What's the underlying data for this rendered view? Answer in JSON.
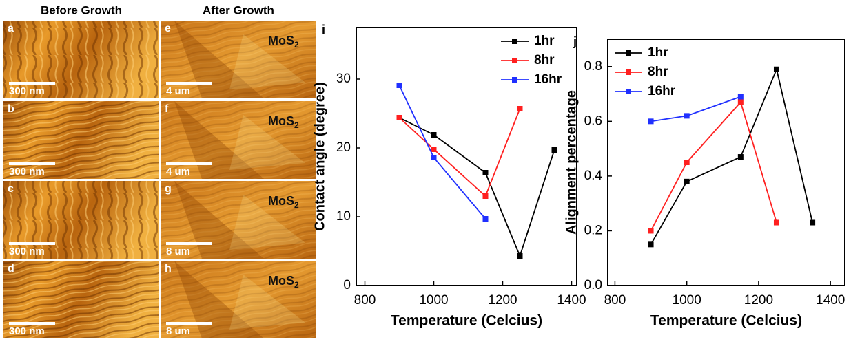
{
  "image_panels": {
    "column_titles": [
      "Before Growth",
      "After Growth"
    ],
    "panels": [
      {
        "letter": "a",
        "scale": "300 nm"
      },
      {
        "letter": "e",
        "scale": "4 um",
        "label": "MoS",
        "label_sub": "2"
      },
      {
        "letter": "b",
        "scale": "300 nm"
      },
      {
        "letter": "f",
        "scale": "4 um",
        "label": "MoS",
        "label_sub": "2"
      },
      {
        "letter": "c",
        "scale": "300 nm"
      },
      {
        "letter": "g",
        "scale": "8 um",
        "label": "MoS",
        "label_sub": "2"
      },
      {
        "letter": "d",
        "scale": "300 nm"
      },
      {
        "letter": "h",
        "scale": "8 um",
        "label": "MoS",
        "label_sub": "2"
      }
    ]
  },
  "chart_data": [
    {
      "type": "line",
      "panel_label": "i",
      "xlabel": "Temperature (Celcius)",
      "ylabel": "Contact angle (degree)",
      "x": [
        900,
        1000,
        1150,
        1250,
        1350
      ],
      "series": [
        {
          "name": "1hr",
          "color": "#000000",
          "values": [
            24.4,
            21.9,
            16.4,
            4.3,
            19.7
          ]
        },
        {
          "name": "8hr",
          "color": "#ff2020",
          "values": [
            24.4,
            19.8,
            13.0,
            25.7,
            null
          ]
        },
        {
          "name": "16hr",
          "color": "#2030ff",
          "values": [
            29.1,
            18.6,
            9.7,
            null,
            null
          ]
        }
      ],
      "xlim": [
        775,
        1415
      ],
      "xticks": [
        800,
        1000,
        1200,
        1400
      ],
      "ylim": [
        0,
        37.5
      ],
      "yticks": [
        0,
        10,
        20,
        30
      ],
      "legend": "upper right"
    },
    {
      "type": "line",
      "panel_label": "j",
      "xlabel": "Temperature (Celcius)",
      "ylabel": "Alignment percentage",
      "x": [
        900,
        1000,
        1150,
        1250,
        1350
      ],
      "series": [
        {
          "name": "1hr",
          "color": "#000000",
          "values": [
            0.15,
            0.38,
            0.47,
            0.79,
            0.23
          ]
        },
        {
          "name": "8hr",
          "color": "#ff2020",
          "values": [
            0.2,
            0.45,
            0.67,
            0.23,
            null
          ]
        },
        {
          "name": "16hr",
          "color": "#2030ff",
          "values": [
            0.6,
            0.62,
            0.69,
            null,
            null
          ]
        }
      ],
      "xlim": [
        780,
        1440
      ],
      "xticks": [
        800,
        1000,
        1200,
        1400
      ],
      "ylim": [
        0,
        0.9
      ],
      "yticks": [
        {
          "value": 0,
          "label": "0.0"
        },
        0.2,
        0.4,
        0.6,
        0.8
      ],
      "legend": "upper left"
    }
  ]
}
